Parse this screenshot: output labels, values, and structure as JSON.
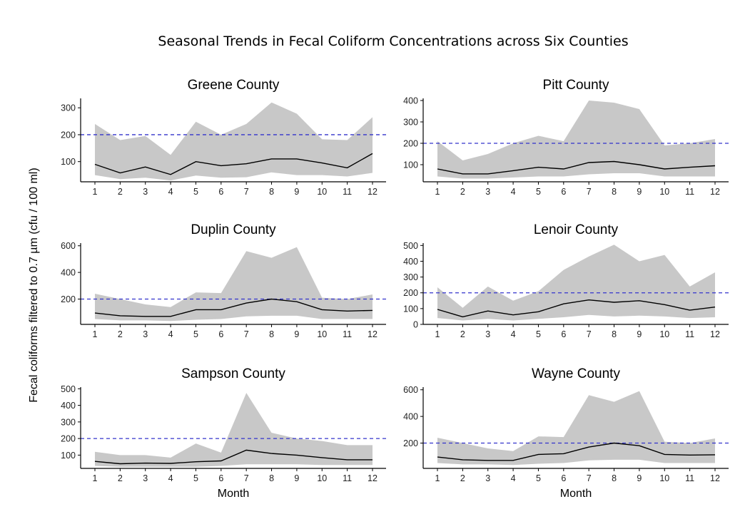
{
  "figure_title": "Seasonal Trends in Fecal Coliform Concentrations across Six Counties",
  "ylabel": "Fecal coliforms filtered to 0.7 µm (cfu / 100 ml)",
  "xlabel": "Month",
  "colors": {
    "band": "#c8c8c8",
    "line": "#000000",
    "threshold": "#3333cc",
    "axis": "#000000"
  },
  "chart_data": [
    {
      "type": "area",
      "title": "Greene County",
      "x": [
        1,
        2,
        3,
        4,
        5,
        6,
        7,
        8,
        9,
        10,
        11,
        12
      ],
      "ylim": [
        25,
        335
      ],
      "yticks": [
        100,
        200,
        300
      ],
      "threshold": 200,
      "series": [
        {
          "name": "",
          "role": "median",
          "values": [
            90,
            58,
            80,
            52,
            100,
            85,
            92,
            110,
            110,
            95,
            77,
            130
          ]
        },
        {
          "name": "",
          "role": "lower",
          "values": [
            50,
            35,
            40,
            30,
            48,
            40,
            42,
            60,
            50,
            50,
            45,
            58
          ]
        },
        {
          "name": "",
          "role": "upper",
          "values": [
            240,
            180,
            195,
            125,
            248,
            200,
            240,
            320,
            278,
            183,
            180,
            265
          ]
        }
      ]
    },
    {
      "type": "area",
      "title": "Pitt County",
      "x": [
        1,
        2,
        3,
        4,
        5,
        6,
        7,
        8,
        9,
        10,
        11,
        12
      ],
      "ylim": [
        20,
        410
      ],
      "yticks": [
        100,
        200,
        300,
        400
      ],
      "threshold": 200,
      "series": [
        {
          "name": "",
          "role": "median",
          "values": [
            80,
            57,
            57,
            72,
            88,
            80,
            110,
            115,
            100,
            80,
            88,
            95
          ]
        },
        {
          "name": "",
          "role": "lower",
          "values": [
            45,
            35,
            35,
            40,
            45,
            45,
            55,
            60,
            60,
            45,
            45,
            45
          ]
        },
        {
          "name": "",
          "role": "upper",
          "values": [
            210,
            120,
            150,
            200,
            235,
            210,
            400,
            390,
            360,
            190,
            200,
            220
          ]
        }
      ]
    },
    {
      "type": "area",
      "title": "Duplin County",
      "x": [
        1,
        2,
        3,
        4,
        5,
        6,
        7,
        8,
        9,
        10,
        11,
        12
      ],
      "ylim": [
        10,
        620
      ],
      "yticks": [
        200,
        400,
        600
      ],
      "threshold": 200,
      "series": [
        {
          "name": "",
          "role": "median",
          "values": [
            95,
            75,
            70,
            70,
            120,
            120,
            170,
            200,
            180,
            120,
            110,
            115
          ]
        },
        {
          "name": "",
          "role": "lower",
          "values": [
            50,
            40,
            40,
            35,
            45,
            50,
            70,
            75,
            75,
            50,
            50,
            50
          ]
        },
        {
          "name": "",
          "role": "upper",
          "values": [
            240,
            200,
            160,
            140,
            250,
            245,
            560,
            510,
            590,
            210,
            200,
            235
          ]
        }
      ]
    },
    {
      "type": "area",
      "title": "Lenoir County",
      "x": [
        1,
        2,
        3,
        4,
        5,
        6,
        7,
        8,
        9,
        10,
        11,
        12
      ],
      "ylim": [
        0,
        515
      ],
      "yticks": [
        0,
        100,
        200,
        300,
        400,
        500
      ],
      "threshold": 200,
      "series": [
        {
          "name": "",
          "role": "median",
          "values": [
            95,
            48,
            85,
            60,
            80,
            130,
            155,
            140,
            150,
            125,
            90,
            110
          ]
        },
        {
          "name": "",
          "role": "lower",
          "values": [
            40,
            25,
            35,
            25,
            35,
            45,
            60,
            50,
            55,
            50,
            40,
            45
          ]
        },
        {
          "name": "",
          "role": "upper",
          "values": [
            235,
            105,
            240,
            150,
            210,
            345,
            430,
            505,
            400,
            440,
            240,
            330
          ]
        }
      ]
    },
    {
      "type": "area",
      "title": "Sampson County",
      "x": [
        1,
        2,
        3,
        4,
        5,
        6,
        7,
        8,
        9,
        10,
        11,
        12
      ],
      "ylim": [
        20,
        510
      ],
      "yticks": [
        100,
        200,
        300,
        400,
        500
      ],
      "threshold": 200,
      "series": [
        {
          "name": "",
          "role": "median",
          "values": [
            62,
            48,
            52,
            50,
            60,
            65,
            130,
            110,
            100,
            85,
            72,
            72
          ]
        },
        {
          "name": "",
          "role": "lower",
          "values": [
            35,
            30,
            30,
            30,
            30,
            35,
            45,
            45,
            45,
            40,
            40,
            40
          ]
        },
        {
          "name": "",
          "role": "upper",
          "values": [
            120,
            100,
            100,
            85,
            170,
            115,
            475,
            235,
            200,
            185,
            160,
            160
          ]
        }
      ]
    },
    {
      "type": "area",
      "title": "Wayne County",
      "x": [
        1,
        2,
        3,
        4,
        5,
        6,
        7,
        8,
        9,
        10,
        11,
        12
      ],
      "ylim": [
        10,
        620
      ],
      "yticks": [
        200,
        400,
        600
      ],
      "threshold": 200,
      "series": [
        {
          "name": "",
          "role": "median",
          "values": [
            95,
            75,
            70,
            70,
            115,
            120,
            170,
            200,
            180,
            115,
            110,
            112
          ]
        },
        {
          "name": "",
          "role": "lower",
          "values": [
            50,
            40,
            40,
            35,
            45,
            50,
            70,
            75,
            75,
            50,
            50,
            50
          ]
        },
        {
          "name": "",
          "role": "upper",
          "values": [
            240,
            200,
            160,
            140,
            250,
            245,
            560,
            510,
            590,
            210,
            200,
            235
          ]
        }
      ]
    }
  ]
}
